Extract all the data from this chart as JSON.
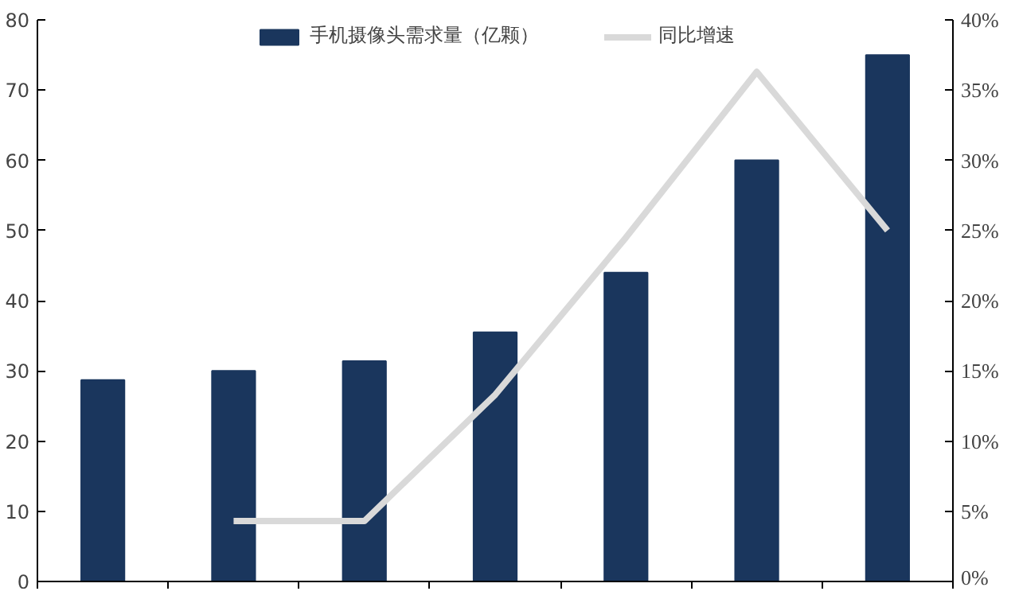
{
  "chart_data": {
    "type": "bar",
    "categories": [
      null,
      null,
      null,
      null,
      null,
      null,
      null
    ],
    "series": [
      {
        "name": "手机摄像头需求量（亿颗）",
        "color": "#1a365d",
        "values": [
          28.7,
          30,
          31.4,
          35.5,
          44,
          60,
          75
        ]
      },
      {
        "name": "同比增速",
        "type": "line",
        "axis": "y2",
        "color": "#d9d9d9",
        "values": [
          null,
          4.3,
          4.3,
          13.3,
          24.5,
          36.3,
          25
        ]
      }
    ],
    "ylim": [
      0,
      80
    ],
    "yticks": [
      0,
      10,
      20,
      30,
      40,
      50,
      60,
      70,
      80
    ],
    "y2lim": [
      0,
      40
    ],
    "y2ticks": [
      {
        "value": 0,
        "label": "0%"
      },
      {
        "value": 5,
        "label": "5%"
      },
      {
        "value": 10,
        "label": "10%"
      },
      {
        "value": 15,
        "label": "15%"
      },
      {
        "value": 20,
        "label": "20%"
      },
      {
        "value": 25,
        "label": "25%"
      },
      {
        "value": 30,
        "label": "30%"
      },
      {
        "value": 35,
        "label": "35%"
      },
      {
        "value": 40,
        "label": "40%"
      }
    ],
    "grid": false,
    "legend": "top",
    "marker": "none",
    "line_style": "solid"
  }
}
